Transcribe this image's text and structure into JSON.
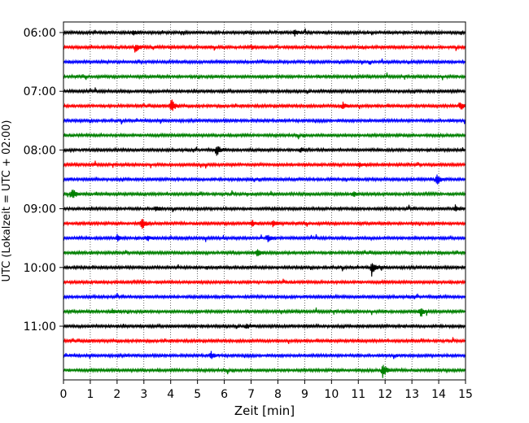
{
  "chart_data": {
    "type": "line",
    "title": "",
    "xlabel": "Zeit  [min]",
    "ylabel": "UTC (Lokalzeit = UTC + 02:00)",
    "xlim": [
      0,
      15
    ],
    "x_ticks": [
      "0",
      "1",
      "2",
      "3",
      "4",
      "5",
      "6",
      "7",
      "8",
      "9",
      "10",
      "11",
      "12",
      "13",
      "14",
      "15"
    ],
    "y_ticks": [
      "06:00",
      "07:00",
      "08:00",
      "09:00",
      "10:00",
      "11:00"
    ],
    "grid": "vertical dotted lines at each minute",
    "trace_interval_minutes": 15,
    "color_cycle": [
      "#000000",
      "#ff0000",
      "#0000ff",
      "#008000"
    ],
    "traces": [
      {
        "start": "06:00",
        "color": "#000000",
        "events": [
          [
            2.6,
            0.35
          ],
          [
            8.6,
            0.4
          ]
        ]
      },
      {
        "start": "06:15",
        "color": "#ff0000",
        "events": [
          [
            2.7,
            0.5
          ],
          [
            7.0,
            0.25
          ]
        ]
      },
      {
        "start": "06:30",
        "color": "#0000ff",
        "events": []
      },
      {
        "start": "06:45",
        "color": "#008000",
        "events": []
      },
      {
        "start": "07:00",
        "color": "#000000",
        "events": []
      },
      {
        "start": "07:15",
        "color": "#ff0000",
        "events": [
          [
            4.0,
            0.9
          ],
          [
            10.4,
            0.5
          ],
          [
            14.8,
            0.6
          ]
        ]
      },
      {
        "start": "07:30",
        "color": "#0000ff",
        "events": []
      },
      {
        "start": "07:45",
        "color": "#008000",
        "events": []
      },
      {
        "start": "08:00",
        "color": "#000000",
        "events": [
          [
            5.7,
            0.8
          ],
          [
            8.8,
            0.3
          ]
        ]
      },
      {
        "start": "08:15",
        "color": "#ff0000",
        "events": [
          [
            11.0,
            0.35
          ]
        ]
      },
      {
        "start": "08:30",
        "color": "#0000ff",
        "events": [
          [
            13.9,
            0.75
          ]
        ]
      },
      {
        "start": "08:45",
        "color": "#008000",
        "events": [
          [
            0.3,
            0.75
          ],
          [
            10.8,
            0.35
          ]
        ]
      },
      {
        "start": "09:00",
        "color": "#000000",
        "events": [
          [
            3.4,
            0.35
          ],
          [
            14.6,
            0.4
          ]
        ]
      },
      {
        "start": "09:15",
        "color": "#ff0000",
        "events": [
          [
            2.9,
            0.75
          ],
          [
            7.0,
            0.4
          ],
          [
            7.8,
            0.4
          ]
        ]
      },
      {
        "start": "09:30",
        "color": "#0000ff",
        "events": [
          [
            2.0,
            0.4
          ],
          [
            3.1,
            0.3
          ],
          [
            7.6,
            0.45
          ]
        ]
      },
      {
        "start": "09:45",
        "color": "#008000",
        "events": [
          [
            7.2,
            0.55
          ]
        ]
      },
      {
        "start": "10:00",
        "color": "#000000",
        "events": [
          [
            11.5,
            0.9
          ]
        ]
      },
      {
        "start": "10:15",
        "color": "#ff0000",
        "events": []
      },
      {
        "start": "10:30",
        "color": "#0000ff",
        "events": []
      },
      {
        "start": "10:45",
        "color": "#008000",
        "events": [
          [
            1.8,
            0.4
          ],
          [
            13.3,
            0.55
          ]
        ]
      },
      {
        "start": "11:00",
        "color": "#000000",
        "events": [
          [
            6.8,
            0.3
          ]
        ]
      },
      {
        "start": "11:15",
        "color": "#ff0000",
        "events": []
      },
      {
        "start": "11:30",
        "color": "#0000ff",
        "events": [
          [
            5.5,
            0.4
          ]
        ]
      },
      {
        "start": "11:45",
        "color": "#008000",
        "events": [
          [
            11.9,
            1.0
          ]
        ]
      }
    ]
  }
}
